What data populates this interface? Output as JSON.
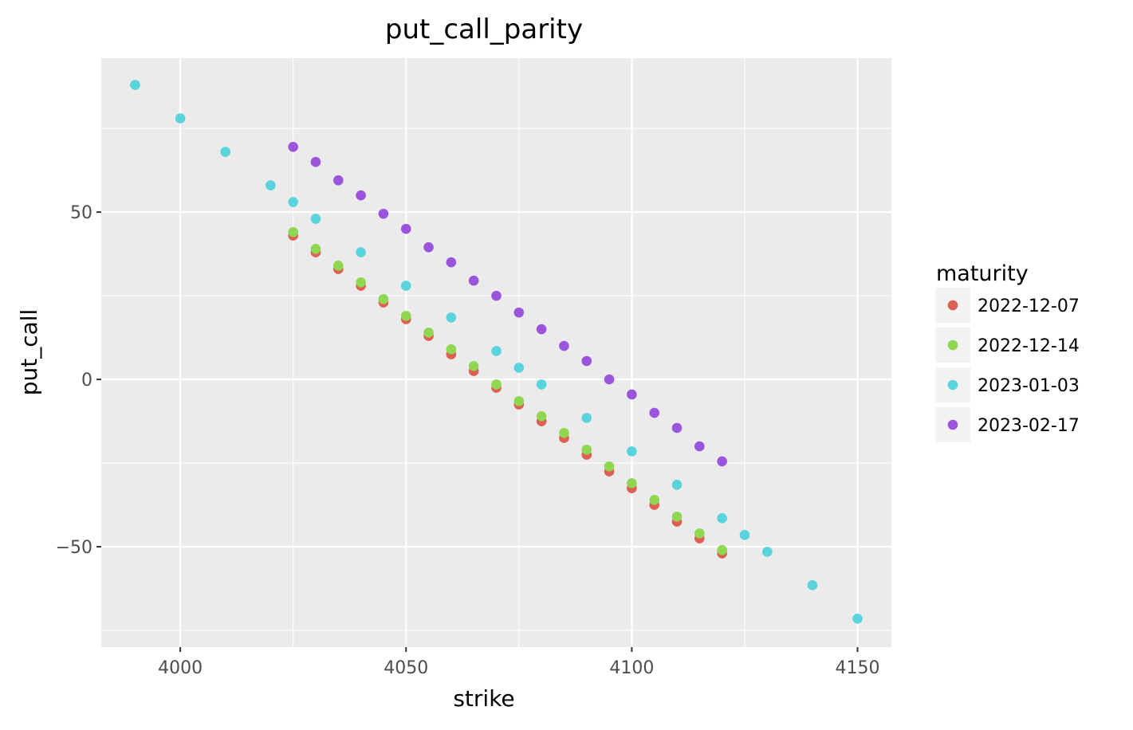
{
  "chart_data": {
    "type": "scatter",
    "title": "put_call_parity",
    "xlabel": "strike",
    "ylabel": "put_call",
    "xlim": [
      3982.5,
      4157.5
    ],
    "ylim": [
      -80,
      96
    ],
    "x_ticks": [
      4000,
      4050,
      4100,
      4150
    ],
    "x_tick_labels": [
      "4000",
      "4050",
      "4100",
      "4150"
    ],
    "y_ticks": [
      -50,
      0,
      50
    ],
    "y_tick_labels": [
      "−50",
      "0",
      "50"
    ],
    "grid": true,
    "legend_title": "maturity",
    "legend_position": "right",
    "series": [
      {
        "name": "2022-12-07",
        "color": "#de5f53",
        "x": [
          4025,
          4030,
          4035,
          4040,
          4045,
          4050,
          4055,
          4060,
          4065,
          4070,
          4075,
          4080,
          4085,
          4090,
          4095,
          4100,
          4105,
          4110,
          4115,
          4120
        ],
        "y": [
          43,
          38,
          33,
          28,
          23,
          18,
          13,
          7.5,
          2.5,
          -2.5,
          -7.5,
          -12.5,
          -17.5,
          -22.5,
          -27.5,
          -32.5,
          -37.5,
          -42.5,
          -47.5,
          -52
        ]
      },
      {
        "name": "2022-12-14",
        "color": "#8fd651",
        "x": [
          4025,
          4030,
          4035,
          4040,
          4045,
          4050,
          4055,
          4060,
          4065,
          4070,
          4075,
          4080,
          4085,
          4090,
          4095,
          4100,
          4105,
          4110,
          4115,
          4120
        ],
        "y": [
          44,
          39,
          34,
          29,
          24,
          19,
          14,
          9,
          4,
          -1.5,
          -6.5,
          -11,
          -16,
          -21,
          -26,
          -31,
          -36,
          -41,
          -46,
          -51
        ]
      },
      {
        "name": "2023-01-03",
        "color": "#59d3dc",
        "x": [
          3990,
          4000,
          4010,
          4020,
          4025,
          4030,
          4040,
          4050,
          4060,
          4070,
          4075,
          4080,
          4090,
          4100,
          4110,
          4120,
          4125,
          4130,
          4140,
          4150
        ],
        "y": [
          88,
          78,
          68,
          58,
          53,
          48,
          38,
          28,
          18.5,
          8.5,
          3.5,
          -1.5,
          -11.5,
          -21.5,
          -31.5,
          -41.5,
          -46.5,
          -51.5,
          -61.5,
          -71.5
        ]
      },
      {
        "name": "2023-02-17",
        "color": "#9b55dd",
        "x": [
          4025,
          4030,
          4035,
          4040,
          4045,
          4050,
          4055,
          4060,
          4065,
          4070,
          4075,
          4080,
          4085,
          4090,
          4095,
          4100,
          4105,
          4110,
          4115,
          4120
        ],
        "y": [
          69.5,
          65,
          59.5,
          55,
          49.5,
          45,
          39.5,
          35,
          29.5,
          25,
          20,
          15,
          10,
          5.5,
          0,
          -4.5,
          -10,
          -14.5,
          -20,
          -24.5
        ]
      }
    ]
  }
}
